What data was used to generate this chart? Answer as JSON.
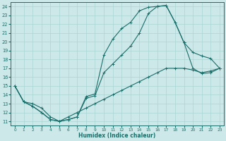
{
  "xlabel": "Humidex (Indice chaleur)",
  "xlim": [
    -0.5,
    23.5
  ],
  "ylim": [
    10.5,
    24.5
  ],
  "xticks": [
    0,
    1,
    2,
    3,
    4,
    5,
    6,
    7,
    8,
    9,
    10,
    11,
    12,
    13,
    14,
    15,
    16,
    17,
    18,
    19,
    20,
    21,
    22,
    23
  ],
  "yticks": [
    11,
    12,
    13,
    14,
    15,
    16,
    17,
    18,
    19,
    20,
    21,
    22,
    23,
    24
  ],
  "bg_color": "#cce8e8",
  "line_color": "#1a6e6a",
  "grid_color": "#aad4d4",
  "line1_x": [
    0,
    1,
    2,
    3,
    4,
    5,
    6,
    7,
    8,
    9,
    10,
    11,
    12,
    13,
    14,
    15,
    16,
    17,
    18,
    19,
    20,
    21,
    22,
    23
  ],
  "line1_y": [
    15.0,
    13.2,
    12.7,
    12.0,
    11.2,
    11.0,
    11.2,
    11.5,
    13.8,
    14.1,
    18.5,
    20.3,
    21.5,
    22.2,
    23.5,
    23.9,
    24.0,
    24.1,
    22.2,
    19.9,
    18.8,
    18.4,
    18.1,
    17.0
  ],
  "line2_x": [
    0,
    1,
    2,
    3,
    4,
    5,
    6,
    7,
    8,
    9,
    10,
    11,
    12,
    13,
    14,
    15,
    16,
    17,
    18,
    19,
    20,
    21,
    22,
    23
  ],
  "line2_y": [
    15.0,
    13.2,
    12.7,
    12.0,
    11.2,
    11.0,
    11.2,
    11.5,
    13.6,
    13.9,
    16.5,
    17.5,
    18.5,
    19.5,
    21.0,
    23.2,
    24.0,
    24.1,
    22.2,
    19.9,
    17.0,
    16.4,
    16.5,
    17.0
  ],
  "line3_x": [
    0,
    1,
    2,
    3,
    4,
    5,
    6,
    7,
    8,
    9,
    10,
    11,
    12,
    13,
    14,
    15,
    16,
    17,
    18,
    19,
    20,
    21,
    22,
    23
  ],
  "line3_y": [
    15.0,
    13.2,
    13.0,
    12.5,
    11.5,
    11.0,
    11.5,
    12.0,
    12.5,
    13.0,
    13.5,
    14.0,
    14.5,
    15.0,
    15.5,
    16.0,
    16.5,
    17.0,
    17.0,
    17.0,
    16.8,
    16.5,
    16.7,
    17.0
  ]
}
